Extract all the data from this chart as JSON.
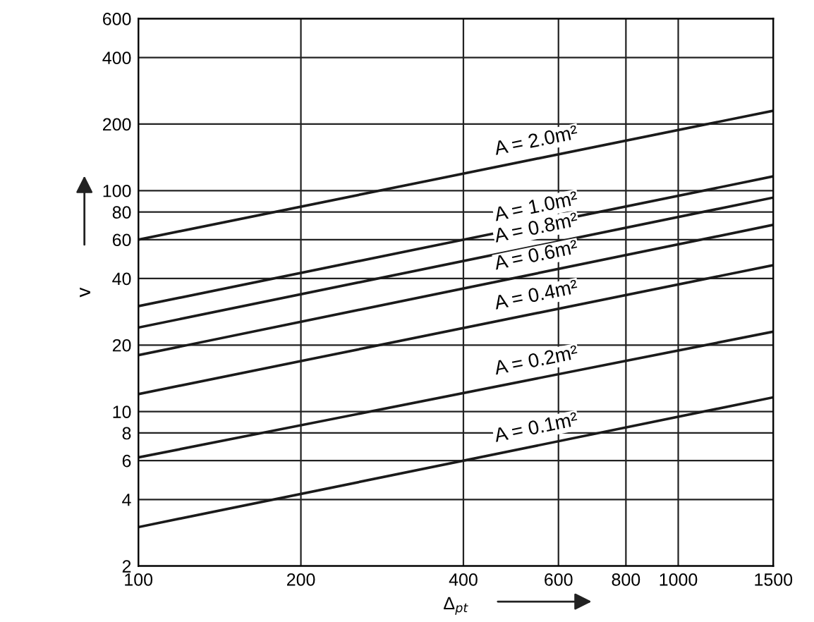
{
  "chart_data": {
    "type": "line",
    "log": "xy",
    "xlabel": "Δ$_{pt}$",
    "ylabel": "v",
    "x": [
      100,
      1500
    ],
    "series": [
      {
        "name": "A = 2.0m²",
        "color": "#1a1a1a",
        "values": [
          60,
          230
        ]
      },
      {
        "name": "A = 1.0m²",
        "color": "#1a1a1a",
        "values": [
          30,
          116
        ]
      },
      {
        "name": "A = 0.8m²",
        "color": "#1a1a1a",
        "values": [
          24,
          93
        ]
      },
      {
        "name": "A = 0.6m²",
        "color": "#1a1a1a",
        "values": [
          18,
          70
        ]
      },
      {
        "name": "A = 0.4m²",
        "color": "#1a1a1a",
        "values": [
          12,
          46
        ]
      },
      {
        "name": "A = 0.2m²",
        "color": "#1a1a1a",
        "values": [
          6.2,
          23
        ]
      },
      {
        "name": "A = 0.1m²",
        "color": "#1a1a1a",
        "values": [
          3,
          11.6
        ]
      }
    ],
    "xlim": [
      100,
      1500
    ],
    "ylim": [
      2,
      600
    ],
    "xticks": [
      100,
      200,
      400,
      600,
      800,
      1000,
      1500
    ],
    "yticks": [
      2,
      4,
      6,
      8,
      10,
      20,
      40,
      60,
      80,
      100,
      200,
      400,
      600
    ],
    "grid": true,
    "marker": "none",
    "line_style": "solid"
  }
}
